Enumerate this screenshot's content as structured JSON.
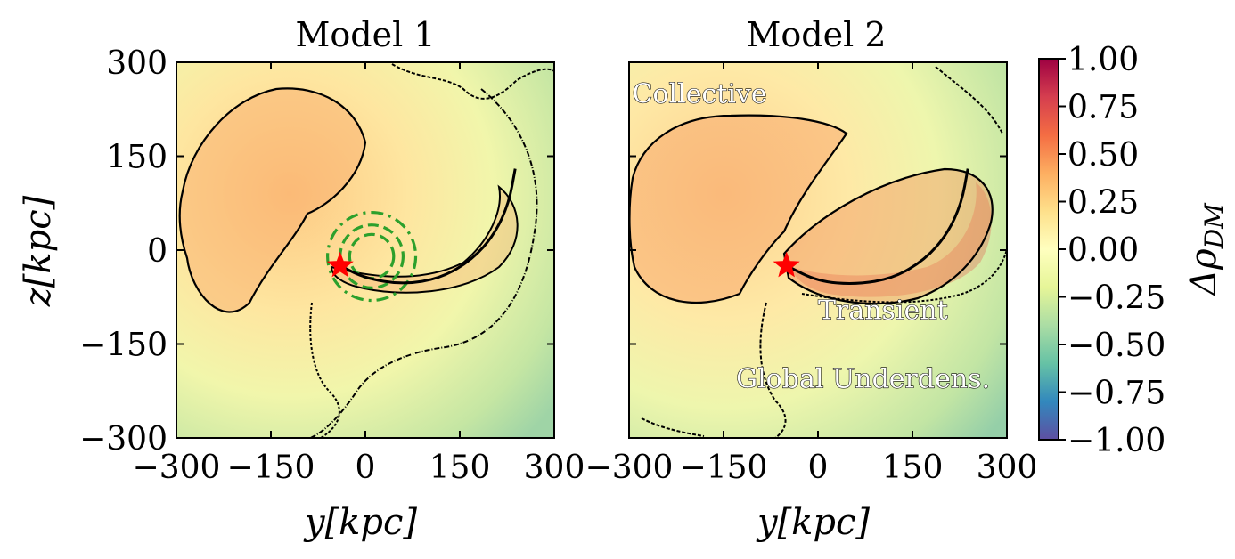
{
  "chart_data": [
    {
      "type": "heatmap",
      "title": "Model 1",
      "xlabel": "y[kpc]",
      "ylabel": "z[kpc]",
      "xlim": [
        -300,
        300
      ],
      "ylim": [
        -300,
        300
      ],
      "x_ticks": [
        -300,
        -150,
        0,
        150,
        300
      ],
      "y_ticks": [
        -300,
        -150,
        0,
        150,
        300
      ],
      "x_tick_labels": [
        "−300",
        "−150",
        "0",
        "150",
        "300"
      ],
      "y_tick_labels": [
        "−300",
        "−150",
        "0",
        "150",
        "300"
      ],
      "star_marker": {
        "y": -40,
        "z": -25,
        "color": "#ff0000"
      },
      "orbit_track": [
        [
          -40,
          -25
        ],
        [
          0,
          -45
        ],
        [
          60,
          -55
        ],
        [
          120,
          -45
        ],
        [
          170,
          -15
        ],
        [
          205,
          25
        ],
        [
          228,
          75
        ],
        [
          238,
          130
        ]
      ],
      "rings": [
        {
          "center": [
            10,
            -10
          ],
          "radius": 35,
          "style": "dashed",
          "color": "#2ca02c"
        },
        {
          "center": [
            10,
            -10
          ],
          "radius": 70,
          "style": "dash-dot",
          "color": "#2ca02c"
        },
        {
          "center": [
            10,
            -10
          ],
          "radius": 50,
          "style": "dashed",
          "color": "#2ca02c"
        }
      ],
      "annotations": []
    },
    {
      "type": "heatmap",
      "title": "Model 2",
      "xlabel": "y[kpc]",
      "ylabel": "",
      "xlim": [
        -300,
        300
      ],
      "ylim": [
        -300,
        300
      ],
      "x_ticks": [
        -300,
        -150,
        0,
        150,
        300
      ],
      "x_tick_labels": [
        "−300",
        "−150",
        "0",
        "150",
        "300"
      ],
      "star_marker": {
        "y": -50,
        "z": -25,
        "color": "#ff0000"
      },
      "orbit_track": [
        [
          -50,
          -25
        ],
        [
          0,
          -50
        ],
        [
          60,
          -55
        ],
        [
          120,
          -45
        ],
        [
          170,
          -15
        ],
        [
          205,
          25
        ],
        [
          228,
          75
        ],
        [
          238,
          130
        ]
      ],
      "annotations": [
        {
          "text": "Collective",
          "y": -295,
          "z": 235
        },
        {
          "text": "Transient",
          "y": 0,
          "z": -110
        },
        {
          "text": "Global Underdens.",
          "y": -130,
          "z": -220
        }
      ]
    }
  ],
  "colorbar": {
    "label": "ΔρDM",
    "label_main": "Δρ",
    "label_sub": "DM",
    "min": -1.0,
    "max": 1.0,
    "ticks": [
      1.0,
      0.75,
      0.5,
      0.25,
      0.0,
      -0.25,
      -0.5,
      -0.75,
      -1.0
    ],
    "tick_labels": [
      "1.00",
      "0.75",
      "0.50",
      "0.25",
      "0.00",
      "−0.25",
      "−0.50",
      "−0.75",
      "−1.00"
    ],
    "colormap": [
      "#5e4fa2",
      "#3288bd",
      "#66c2a5",
      "#abdda4",
      "#e6f598",
      "#ffffbf",
      "#fee08b",
      "#fdae61",
      "#f46d43",
      "#d53e4f",
      "#9e0142"
    ]
  }
}
